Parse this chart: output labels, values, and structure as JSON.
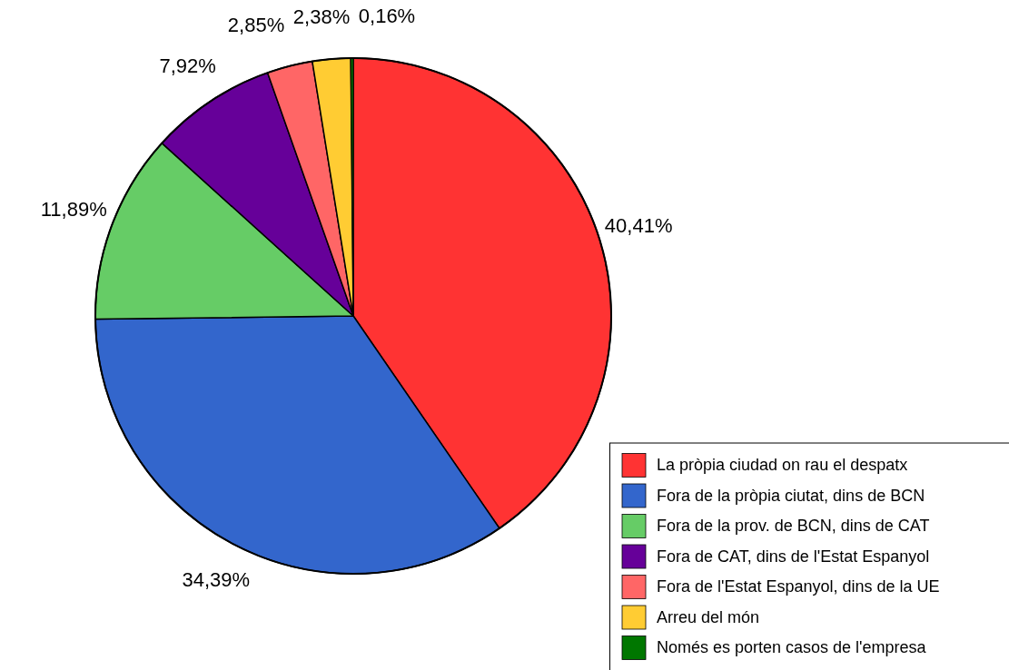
{
  "chart_data": {
    "type": "pie",
    "categories": [
      "La pròpia ciudad on rau el despatx",
      "Fora de la pròpia ciutat, dins de BCN",
      "Fora de la prov. de BCN, dins de CAT",
      "Fora de CAT, dins de l'Estat Espanyol",
      "Fora de l'Estat Espanyol, dins de la UE",
      "Arreu del món",
      "Només es porten casos de l'empresa"
    ],
    "values": [
      40.41,
      34.39,
      11.89,
      7.92,
      2.85,
      2.38,
      0.16
    ],
    "value_labels": [
      "40,41%",
      "34,39%",
      "11,89%",
      "7,92%",
      "2,85%",
      "2,38%",
      "0,16%"
    ],
    "colors": [
      "#ff3333",
      "#3366cc",
      "#66cc66",
      "#660099",
      "#ff6666",
      "#ffcc33",
      "#007700"
    ],
    "legend": "bottom right"
  }
}
